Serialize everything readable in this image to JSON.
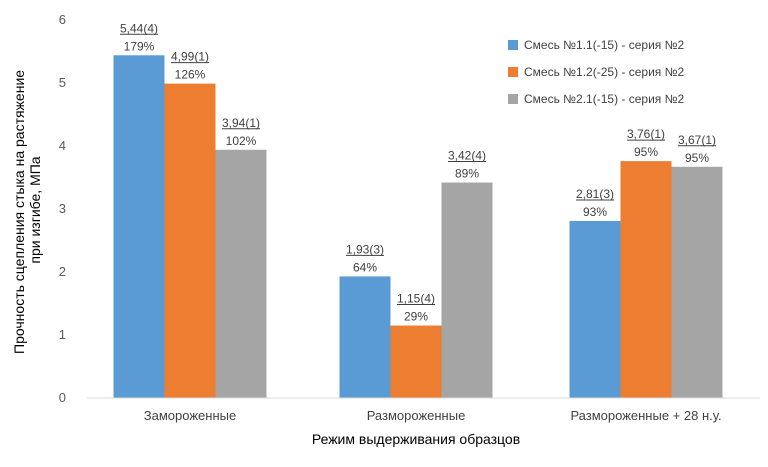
{
  "chart_data": {
    "type": "bar",
    "categories": [
      "Замороженные",
      "Размороженные",
      "Размороженные + 28 н.у."
    ],
    "series": [
      {
        "name": "Смесь №1.1(-15) - серия №2",
        "color": "#5B9BD5",
        "values": [
          5.44,
          1.93,
          2.81
        ],
        "labels": [
          "5,44(4)",
          "1,93(3)",
          "2,81(3)"
        ],
        "percent": [
          "179%",
          "64%",
          "93%"
        ]
      },
      {
        "name": "Смесь №1.2(-25) - серия №2",
        "color": "#ED7D31",
        "values": [
          4.99,
          1.15,
          3.76
        ],
        "labels": [
          "4,99(1)",
          "1,15(4)",
          "3,76(1)"
        ],
        "percent": [
          "126%",
          "29%",
          "95%"
        ]
      },
      {
        "name": "Смесь №2.1(-15) - серия №2",
        "color": "#A5A5A5",
        "values": [
          3.94,
          3.42,
          3.67
        ],
        "labels": [
          "3,94(1)",
          "3,42(4)",
          "3,67(1)"
        ],
        "percent": [
          "102%",
          "89%",
          "95%"
        ]
      }
    ],
    "xlabel": "Режим выдерживания образцов",
    "ylabel_lines": [
      "Прочность сцепления стыка на растяжение",
      "при изгибе, МПа"
    ],
    "ylim": [
      0,
      6
    ],
    "yticks": [
      0,
      1,
      2,
      3,
      4,
      5,
      6
    ],
    "grid": false,
    "legend_position": "top-right"
  }
}
